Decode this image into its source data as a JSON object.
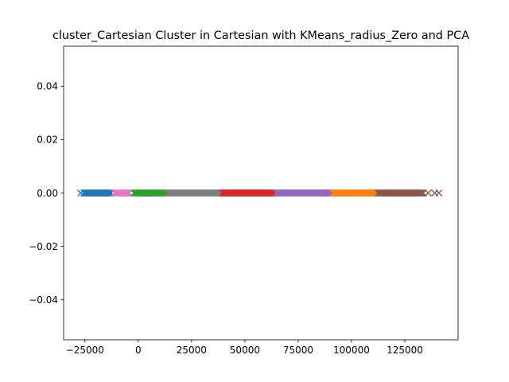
{
  "chart_data": {
    "type": "scatter",
    "title": "cluster_Cartesian Cluster in Cartesian with KMeans_radius_Zero and PCA",
    "xlabel": "",
    "ylabel": "",
    "xlim": [
      -35000,
      150000
    ],
    "ylim": [
      -0.055,
      0.055
    ],
    "grid": false,
    "marker": "x",
    "xticks": [
      {
        "value": -25000,
        "label": "−25000"
      },
      {
        "value": 0,
        "label": "0"
      },
      {
        "value": 25000,
        "label": "25000"
      },
      {
        "value": 50000,
        "label": "50000"
      },
      {
        "value": 75000,
        "label": "75000"
      },
      {
        "value": 100000,
        "label": "100000"
      },
      {
        "value": 125000,
        "label": "125000"
      }
    ],
    "yticks": [
      {
        "value": 0.04,
        "label": "0.04"
      },
      {
        "value": 0.02,
        "label": "0.02"
      },
      {
        "value": 0.0,
        "label": "0.00"
      },
      {
        "value": -0.02,
        "label": "−0.02"
      },
      {
        "value": -0.04,
        "label": "−0.04"
      }
    ],
    "series": [
      {
        "color": "#1f77b4",
        "x_range": [
          -25500,
          -12500
        ],
        "outliers": [
          -27000
        ],
        "y": 0
      },
      {
        "color": "#e377c2",
        "x_range": [
          -11000,
          -4000
        ],
        "outliers": [],
        "y": 0
      },
      {
        "color": "#2ca02c",
        "x_range": [
          -2000,
          13500
        ],
        "outliers": [],
        "y": 0
      },
      {
        "color": "#7f7f7f",
        "x_range": [
          14000,
          39000
        ],
        "outliers": [],
        "y": 0
      },
      {
        "color": "#d62728",
        "x_range": [
          39500,
          64000
        ],
        "outliers": [],
        "y": 0
      },
      {
        "color": "#9467bd",
        "x_range": [
          65000,
          91000
        ],
        "outliers": [],
        "y": 0
      },
      {
        "color": "#ff7f0e",
        "x_range": [
          91500,
          112000
        ],
        "outliers": [],
        "y": 0
      },
      {
        "color": "#8c564b",
        "x_range": [
          112500,
          134000
        ],
        "outliers": [
          136000,
          139000,
          141000
        ],
        "y": 0
      }
    ]
  }
}
